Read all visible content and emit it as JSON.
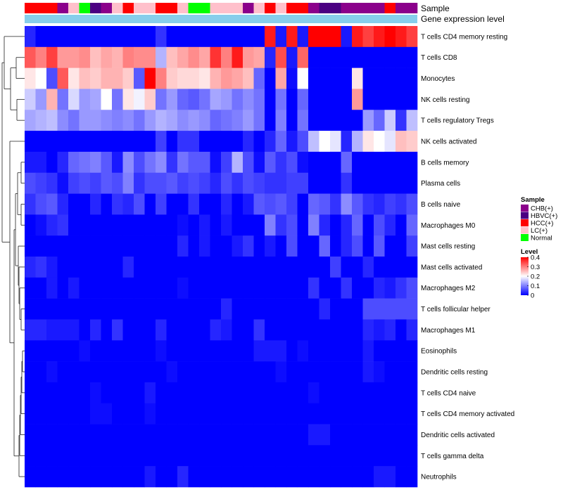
{
  "chart_data": {
    "type": "heatmap",
    "title": "",
    "annotation_rows": [
      {
        "name": "Sample",
        "label": "Sample"
      },
      {
        "name": "Gene expression level",
        "label": "Gene expression level"
      }
    ],
    "sample_annotation": [
      "HCC(+)",
      "HCC(+)",
      "HCC(+)",
      "CHB(+)",
      "LC(+)",
      "Normal",
      "HBVC(+)",
      "CHB(+)",
      "LC(+)",
      "HCC(+)",
      "LC(+)",
      "LC(+)",
      "HCC(+)",
      "HCC(+)",
      "LC(+)",
      "Normal",
      "Normal",
      "LC(+)",
      "LC(+)",
      "LC(+)",
      "CHB(+)",
      "LC(+)",
      "HCC(+)",
      "LC(+)",
      "HCC(+)",
      "HCC(+)",
      "CHB(+)",
      "HBVC(+)",
      "HBVC(+)",
      "CHB(+)",
      "CHB(+)",
      "CHB(+)",
      "CHB(+)",
      "HCC(+)",
      "CHB(+)",
      "CHB(+)"
    ],
    "expression_annotation_color": "#87ceeb",
    "rows": [
      "T cells CD4 memory resting",
      "T cells CD8",
      "Monocytes",
      "NK cells resting",
      "T cells regulatory  Tregs",
      "NK cells activated",
      "B cells memory",
      "Plasma cells",
      "B cells naive",
      "Macrophages M0",
      "Mast cells resting",
      "Mast cells activated",
      "Macrophages M2",
      "T cells follicular helper",
      "Macrophages M1",
      "Eosinophils",
      "Dendritic cells resting",
      "T cells CD4 naive",
      "T cells CD4 memory activated",
      "Dendritic cells activated",
      "T cells gamma delta",
      "Neutrophils"
    ],
    "n_columns": 36,
    "values": [
      [
        0.03,
        0.0,
        0.0,
        0.0,
        0.0,
        0.0,
        0.0,
        0.0,
        0.0,
        0.0,
        0.0,
        0.0,
        0.04,
        0.0,
        0.0,
        0.0,
        0.0,
        0.0,
        0.0,
        0.0,
        0.0,
        0.0,
        0.38,
        0.02,
        0.38,
        0.02,
        0.4,
        0.4,
        0.4,
        0.02,
        0.38,
        0.35,
        0.38,
        0.4,
        0.38,
        0.35
      ],
      [
        0.33,
        0.3,
        0.35,
        0.28,
        0.28,
        0.29,
        0.25,
        0.27,
        0.26,
        0.3,
        0.29,
        0.29,
        0.14,
        0.25,
        0.27,
        0.29,
        0.27,
        0.36,
        0.3,
        0.38,
        0.28,
        0.27,
        0.03,
        0.34,
        0.02,
        0.32,
        0.0,
        0.0,
        0.0,
        0.0,
        0.0,
        0.0,
        0.0,
        0.0,
        0.0,
        0.0
      ],
      [
        0.22,
        0.2,
        0.06,
        0.33,
        0.22,
        0.25,
        0.24,
        0.26,
        0.26,
        0.24,
        0.07,
        0.4,
        0.3,
        0.24,
        0.23,
        0.23,
        0.22,
        0.26,
        0.28,
        0.27,
        0.25,
        0.08,
        0.0,
        0.27,
        0.01,
        0.2,
        0.0,
        0.0,
        0.0,
        0.0,
        0.22,
        0.0,
        0.0,
        0.0,
        0.0,
        0.0
      ],
      [
        0.16,
        0.12,
        0.26,
        0.09,
        0.17,
        0.12,
        0.13,
        0.2,
        0.09,
        0.22,
        0.19,
        0.24,
        0.09,
        0.12,
        0.08,
        0.07,
        0.09,
        0.13,
        0.12,
        0.09,
        0.11,
        0.09,
        0.0,
        0.09,
        0.0,
        0.08,
        0.0,
        0.0,
        0.0,
        0.0,
        0.28,
        0.0,
        0.0,
        0.0,
        0.0,
        0.0
      ],
      [
        0.13,
        0.14,
        0.15,
        0.11,
        0.09,
        0.12,
        0.12,
        0.11,
        0.1,
        0.11,
        0.09,
        0.12,
        0.14,
        0.13,
        0.11,
        0.12,
        0.11,
        0.08,
        0.09,
        0.1,
        0.12,
        0.09,
        0.0,
        0.1,
        0.0,
        0.09,
        0.0,
        0.0,
        0.0,
        0.0,
        0.0,
        0.12,
        0.08,
        0.16,
        0.04,
        0.15
      ],
      [
        0.0,
        0.0,
        0.0,
        0.0,
        0.0,
        0.0,
        0.0,
        0.0,
        0.0,
        0.0,
        0.0,
        0.0,
        0.05,
        0.0,
        0.04,
        0.04,
        0.0,
        0.0,
        0.0,
        0.0,
        0.03,
        0.0,
        0.03,
        0.08,
        0.02,
        0.06,
        0.15,
        0.2,
        0.18,
        0.03,
        0.14,
        0.22,
        0.2,
        0.18,
        0.25,
        0.24
      ],
      [
        0.02,
        0.02,
        0.0,
        0.03,
        0.08,
        0.09,
        0.1,
        0.07,
        0.02,
        0.11,
        0.06,
        0.09,
        0.11,
        0.04,
        0.09,
        0.07,
        0.07,
        0.01,
        0.05,
        0.14,
        0.06,
        0.01,
        0.07,
        0.04,
        0.06,
        0.01,
        0.0,
        0.0,
        0.0,
        0.08,
        0.0,
        0.0,
        0.0,
        0.0,
        0.0,
        0.0
      ],
      [
        0.06,
        0.05,
        0.04,
        0.01,
        0.05,
        0.06,
        0.05,
        0.07,
        0.06,
        0.1,
        0.04,
        0.06,
        0.06,
        0.07,
        0.05,
        0.06,
        0.05,
        0.03,
        0.06,
        0.04,
        0.06,
        0.05,
        0.04,
        0.04,
        0.05,
        0.05,
        0.0,
        0.0,
        0.0,
        0.04,
        0.0,
        0.0,
        0.0,
        0.0,
        0.0,
        0.0
      ],
      [
        0.04,
        0.06,
        0.07,
        0.03,
        0.0,
        0.0,
        0.03,
        0.0,
        0.04,
        0.03,
        0.06,
        0.0,
        0.05,
        0.0,
        0.0,
        0.04,
        0.0,
        0.0,
        0.03,
        0.0,
        0.02,
        0.07,
        0.06,
        0.07,
        0.05,
        0.0,
        0.08,
        0.07,
        0.04,
        0.11,
        0.07,
        0.04,
        0.03,
        0.05,
        0.04,
        0.06
      ],
      [
        0.0,
        0.01,
        0.03,
        0.04,
        0.0,
        0.0,
        0.0,
        0.0,
        0.0,
        0.0,
        0.0,
        0.0,
        0.0,
        0.0,
        0.01,
        0.0,
        0.02,
        0.0,
        0.02,
        0.0,
        0.0,
        0.0,
        0.1,
        0.04,
        0.06,
        0.0,
        0.1,
        0.03,
        0.0,
        0.03,
        0.08,
        0.0,
        0.06,
        0.03,
        0.0,
        0.08
      ],
      [
        0.0,
        0.0,
        0.0,
        0.0,
        0.0,
        0.0,
        0.0,
        0.0,
        0.0,
        0.0,
        0.0,
        0.0,
        0.0,
        0.0,
        0.03,
        0.0,
        0.02,
        0.0,
        0.0,
        0.02,
        0.04,
        0.0,
        0.02,
        0.0,
        0.06,
        0.0,
        0.0,
        0.08,
        0.0,
        0.03,
        0.06,
        0.0,
        0.07,
        0.0,
        0.0,
        0.05
      ],
      [
        0.03,
        0.04,
        0.02,
        0.0,
        0.0,
        0.0,
        0.0,
        0.0,
        0.0,
        0.03,
        0.0,
        0.0,
        0.0,
        0.0,
        0.0,
        0.0,
        0.0,
        0.0,
        0.0,
        0.0,
        0.0,
        0.0,
        0.0,
        0.0,
        0.0,
        0.0,
        0.0,
        0.0,
        0.05,
        0.0,
        0.0,
        0.03,
        0.0,
        0.0,
        0.0,
        0.0
      ],
      [
        0.0,
        0.0,
        0.02,
        0.0,
        0.02,
        0.0,
        0.0,
        0.0,
        0.0,
        0.0,
        0.0,
        0.0,
        0.0,
        0.0,
        0.01,
        0.0,
        0.0,
        0.0,
        0.0,
        0.0,
        0.0,
        0.0,
        0.0,
        0.0,
        0.0,
        0.0,
        0.04,
        0.0,
        0.0,
        0.04,
        0.0,
        0.0,
        0.03,
        0.02,
        0.04,
        0.06
      ],
      [
        0.0,
        0.0,
        0.0,
        0.0,
        0.0,
        0.0,
        0.0,
        0.0,
        0.0,
        0.0,
        0.0,
        0.0,
        0.0,
        0.0,
        0.0,
        0.0,
        0.0,
        0.0,
        0.03,
        0.0,
        0.0,
        0.0,
        0.0,
        0.0,
        0.0,
        0.0,
        0.0,
        0.03,
        0.0,
        0.0,
        0.0,
        0.06,
        0.06,
        0.06,
        0.06,
        0.06
      ],
      [
        0.03,
        0.03,
        0.02,
        0.02,
        0.02,
        0.0,
        0.03,
        0.0,
        0.04,
        0.0,
        0.0,
        0.0,
        0.03,
        0.0,
        0.0,
        0.0,
        0.0,
        0.03,
        0.02,
        0.0,
        0.0,
        0.04,
        0.0,
        0.0,
        0.0,
        0.0,
        0.0,
        0.0,
        0.0,
        0.0,
        0.0,
        0.03,
        0.02,
        0.03,
        0.0,
        0.03
      ],
      [
        0.0,
        0.0,
        0.0,
        0.0,
        0.0,
        0.01,
        0.0,
        0.0,
        0.0,
        0.0,
        0.0,
        0.0,
        0.01,
        0.0,
        0.0,
        0.0,
        0.0,
        0.0,
        0.0,
        0.0,
        0.0,
        0.02,
        0.02,
        0.02,
        0.0,
        0.01,
        0.0,
        0.0,
        0.0,
        0.0,
        0.0,
        0.02,
        0.0,
        0.0,
        0.0,
        0.0
      ],
      [
        0.0,
        0.0,
        0.01,
        0.0,
        0.0,
        0.0,
        0.0,
        0.0,
        0.0,
        0.0,
        0.0,
        0.0,
        0.0,
        0.01,
        0.0,
        0.0,
        0.0,
        0.0,
        0.0,
        0.0,
        0.0,
        0.0,
        0.0,
        0.01,
        0.0,
        0.0,
        0.0,
        0.0,
        0.0,
        0.0,
        0.0,
        0.02,
        0.01,
        0.0,
        0.0,
        0.0
      ],
      [
        0.0,
        0.0,
        0.0,
        0.0,
        0.0,
        0.0,
        0.01,
        0.0,
        0.0,
        0.0,
        0.0,
        0.02,
        0.0,
        0.0,
        0.0,
        0.0,
        0.0,
        0.0,
        0.0,
        0.0,
        0.0,
        0.0,
        0.0,
        0.0,
        0.0,
        0.0,
        0.01,
        0.0,
        0.0,
        0.0,
        0.0,
        0.0,
        0.0,
        0.0,
        0.0,
        0.0
      ],
      [
        0.0,
        0.0,
        0.0,
        0.0,
        0.0,
        0.0,
        0.01,
        0.01,
        0.0,
        0.0,
        0.0,
        0.01,
        0.0,
        0.0,
        0.0,
        0.0,
        0.0,
        0.0,
        0.0,
        0.0,
        0.0,
        0.0,
        0.0,
        0.0,
        0.0,
        0.0,
        0.0,
        0.0,
        0.0,
        0.0,
        0.0,
        0.0,
        0.0,
        0.0,
        0.0,
        0.0
      ],
      [
        0.0,
        0.0,
        0.0,
        0.0,
        0.0,
        0.0,
        0.0,
        0.0,
        0.0,
        0.0,
        0.0,
        0.0,
        0.0,
        0.0,
        0.0,
        0.0,
        0.0,
        0.0,
        0.0,
        0.0,
        0.0,
        0.0,
        0.0,
        0.0,
        0.0,
        0.0,
        0.02,
        0.02,
        0.0,
        0.0,
        0.0,
        0.0,
        0.0,
        0.0,
        0.0,
        0.0
      ],
      [
        0.0,
        0.0,
        0.0,
        0.0,
        0.0,
        0.0,
        0.0,
        0.0,
        0.0,
        0.0,
        0.0,
        0.0,
        0.0,
        0.0,
        0.0,
        0.0,
        0.0,
        0.0,
        0.0,
        0.0,
        0.0,
        0.0,
        0.0,
        0.0,
        0.0,
        0.0,
        0.0,
        0.0,
        0.0,
        0.0,
        0.0,
        0.0,
        0.0,
        0.0,
        0.0,
        0.0
      ],
      [
        0.0,
        0.0,
        0.0,
        0.0,
        0.0,
        0.0,
        0.0,
        0.0,
        0.0,
        0.0,
        0.0,
        0.02,
        0.0,
        0.0,
        0.03,
        0.0,
        0.0,
        0.0,
        0.0,
        0.0,
        0.0,
        0.0,
        0.0,
        0.0,
        0.0,
        0.0,
        0.0,
        0.0,
        0.0,
        0.0,
        0.0,
        0.0,
        0.02,
        0.02,
        0.0,
        0.0
      ]
    ],
    "color_scale": {
      "min": 0,
      "max": 0.4,
      "colors": [
        "#0000ff",
        "#ffffff",
        "#ff0000"
      ]
    },
    "legends": {
      "sample": {
        "title": "Sample",
        "entries": [
          {
            "label": "CHB(+)",
            "color": "#8b008b"
          },
          {
            "label": "HBVC(+)",
            "color": "#4b0082"
          },
          {
            "label": "HCC(+)",
            "color": "#ff0000"
          },
          {
            "label": "LC(+)",
            "color": "#ffc0cb"
          },
          {
            "label": "Normal",
            "color": "#00ff00"
          }
        ]
      },
      "level": {
        "title": "Level",
        "ticks": [
          {
            "label": "0.4",
            "value": 0.4
          },
          {
            "label": "0.3",
            "value": 0.3
          },
          {
            "label": "0.2",
            "value": 0.2
          },
          {
            "label": "0.1",
            "value": 0.1
          },
          {
            "label": "0",
            "value": 0
          }
        ]
      }
    }
  }
}
